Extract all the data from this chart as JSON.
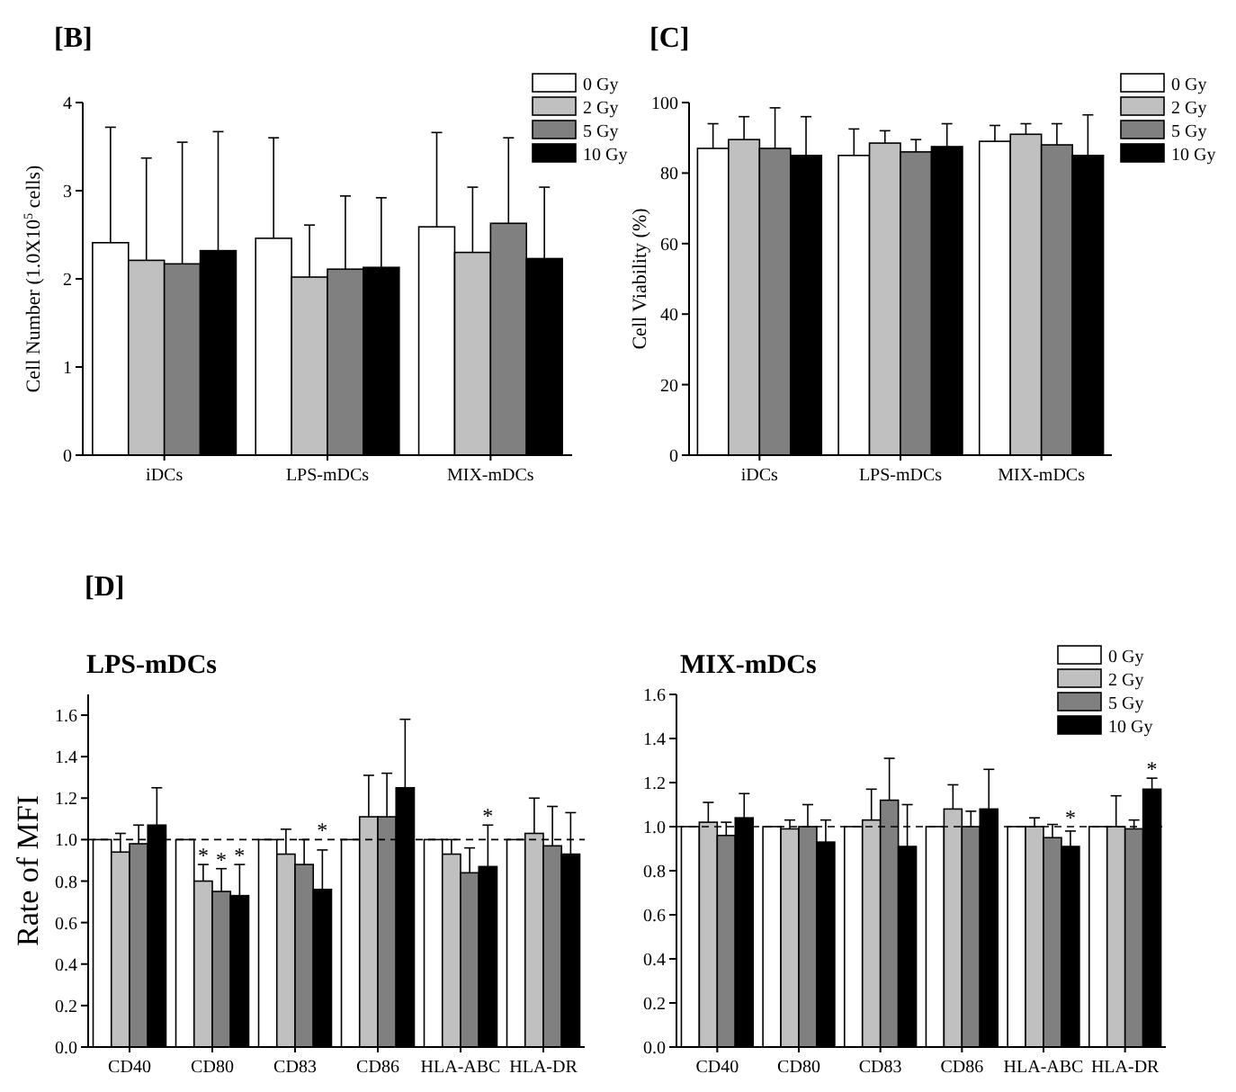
{
  "chart_data": [
    {
      "type": "bar",
      "title": "[B]",
      "ylabel": "Cell Number (1.0X10$^{5}$ cells)",
      "categories": [
        "iDCs",
        "LPS-mDCs",
        "MIX-mDCs"
      ],
      "ylim": [
        0,
        4
      ],
      "yticks": [
        0,
        1,
        2,
        3,
        4
      ],
      "legend": "top right",
      "series": [
        {
          "name": "0 Gy",
          "color": "#ffffff",
          "values": [
            2.41,
            2.46,
            2.59
          ],
          "errors": [
            1.31,
            1.14,
            1.07
          ]
        },
        {
          "name": "2 Gy",
          "color": "#c0c0c0",
          "values": [
            2.21,
            2.02,
            2.3
          ],
          "errors": [
            1.16,
            0.59,
            0.74
          ]
        },
        {
          "name": "5 Gy",
          "color": "#808080",
          "values": [
            2.17,
            2.11,
            2.63
          ],
          "errors": [
            1.38,
            0.83,
            0.97
          ]
        },
        {
          "name": "10 Gy",
          "color": "#000000",
          "values": [
            2.32,
            2.13,
            2.23
          ],
          "errors": [
            1.35,
            0.79,
            0.81
          ]
        }
      ]
    },
    {
      "type": "bar",
      "title": "[C]",
      "ylabel": "Cell Viability (%)",
      "categories": [
        "iDCs",
        "LPS-mDCs",
        "MIX-mDCs"
      ],
      "ylim": [
        0,
        100
      ],
      "yticks": [
        0,
        20,
        40,
        60,
        80,
        100
      ],
      "legend": "right",
      "series": [
        {
          "name": "0 Gy",
          "color": "#ffffff",
          "values": [
            87,
            85,
            89
          ],
          "errors": [
            7,
            7.5,
            4.5
          ]
        },
        {
          "name": "2 Gy",
          "color": "#c0c0c0",
          "values": [
            89.5,
            88.5,
            91
          ],
          "errors": [
            6.5,
            3.5,
            3
          ]
        },
        {
          "name": "5 Gy",
          "color": "#808080",
          "values": [
            87,
            86,
            88
          ],
          "errors": [
            11.5,
            3.5,
            6
          ]
        },
        {
          "name": "10 Gy",
          "color": "#000000",
          "values": [
            85,
            87.5,
            85
          ],
          "errors": [
            11,
            6.5,
            11.5
          ]
        }
      ]
    },
    {
      "type": "bar",
      "title": "LPS-mDCs",
      "ylabel": "Rate of MFI",
      "categories": [
        "CD40",
        "CD80",
        "CD83",
        "CD86",
        "HLA-ABC",
        "HLA-DR"
      ],
      "ylim": [
        0,
        1.7
      ],
      "yticks": [
        {
          "value": 0,
          "label": "0.0"
        },
        {
          "value": 0.2,
          "label": "0.2"
        },
        {
          "value": 0.4,
          "label": "0.4"
        },
        {
          "value": 0.6,
          "label": "0.6"
        },
        {
          "value": 0.8,
          "label": "0.8"
        },
        {
          "value": 1,
          "label": "1.0"
        },
        {
          "value": 1.2,
          "label": "1.2"
        },
        {
          "value": 1.4,
          "label": "1.4"
        },
        {
          "value": 1.6,
          "label": "1.6"
        }
      ],
      "ref_lines": [
        {
          "axis": "y",
          "value": 1,
          "line_style": "dashed"
        }
      ],
      "annotations": [
        "[D]",
        {
          "text": "*",
          "x": "CD80",
          "y": 0.88
        },
        {
          "text": "*",
          "x": "CD80",
          "y": 0.86
        },
        {
          "text": "*",
          "x": "CD80",
          "y": 0.88
        },
        {
          "text": "*",
          "x": "CD83",
          "y": 1
        },
        {
          "text": "*",
          "x": "HLA-ABC",
          "y": 1
        }
      ],
      "series": [
        {
          "color": "#ffffff",
          "values": [
            1,
            1,
            1,
            1,
            1,
            1
          ],
          "errors": [
            null,
            null,
            null,
            null,
            null,
            null
          ]
        },
        {
          "color": "#c0c0c0",
          "values": [
            0.94,
            0.8,
            0.93,
            1.11,
            0.93,
            1.03
          ],
          "errors": [
            0.09,
            0.08,
            0.12,
            0.2,
            0.07,
            0.17
          ]
        },
        {
          "color": "#808080",
          "values": [
            0.98,
            0.75,
            0.88,
            1.11,
            0.84,
            0.97
          ],
          "errors": [
            0.09,
            0.11,
            0.12,
            0.21,
            0.12,
            0.19
          ]
        },
        {
          "color": "#000000",
          "values": [
            1.07,
            0.73,
            0.76,
            1.25,
            0.87,
            0.93
          ],
          "errors": [
            0.18,
            0.15,
            0.19,
            0.33,
            0.2,
            0.2
          ]
        }
      ]
    },
    {
      "type": "bar",
      "title": "MIX-mDCs",
      "categories": [
        "CD40",
        "CD80",
        "CD83",
        "CD86",
        "HLA-ABC",
        "HLA-DR"
      ],
      "ylim": [
        0,
        1.6
      ],
      "yticks": [
        {
          "value": 0,
          "label": "0.0"
        },
        {
          "value": 0.2,
          "label": "0.2"
        },
        {
          "value": 0.4,
          "label": "0.4"
        },
        {
          "value": 0.6,
          "label": "0.6"
        },
        {
          "value": 0.8,
          "label": "0.8"
        },
        {
          "value": 1,
          "label": "1.0"
        },
        {
          "value": 1.2,
          "label": "1.2"
        },
        {
          "value": 1.4,
          "label": "1.4"
        },
        {
          "value": 1.6,
          "label": "1.6"
        }
      ],
      "legend": "top right",
      "ref_lines": [
        {
          "axis": "y",
          "value": 1,
          "line_style": "dashed"
        }
      ],
      "annotations": [
        {
          "text": "*",
          "x": "HLA-ABC",
          "y": 1
        },
        {
          "text": "*",
          "x": "HLA-DR",
          "y": 1.17
        }
      ],
      "series": [
        {
          "name": "0 Gy",
          "color": "#ffffff",
          "values": [
            1,
            1,
            1,
            1,
            1,
            1
          ],
          "errors": [
            null,
            null,
            null,
            null,
            null,
            null
          ]
        },
        {
          "name": "2 Gy",
          "color": "#c0c0c0",
          "values": [
            1.02,
            0.99,
            1.03,
            1.08,
            1.0,
            1.0
          ],
          "errors": [
            0.09,
            0.04,
            0.14,
            0.11,
            0.04,
            0.14
          ]
        },
        {
          "name": "5 Gy",
          "color": "#808080",
          "values": [
            0.96,
            1.0,
            1.12,
            1.0,
            0.95,
            0.99
          ],
          "errors": [
            0.06,
            0.1,
            0.19,
            0.07,
            0.06,
            0.04
          ]
        },
        {
          "name": "10 Gy",
          "color": "#000000",
          "values": [
            1.04,
            0.93,
            0.91,
            1.08,
            0.91,
            1.17
          ],
          "errors": [
            0.11,
            0.1,
            0.19,
            0.18,
            0.07,
            0.05
          ]
        }
      ]
    }
  ]
}
